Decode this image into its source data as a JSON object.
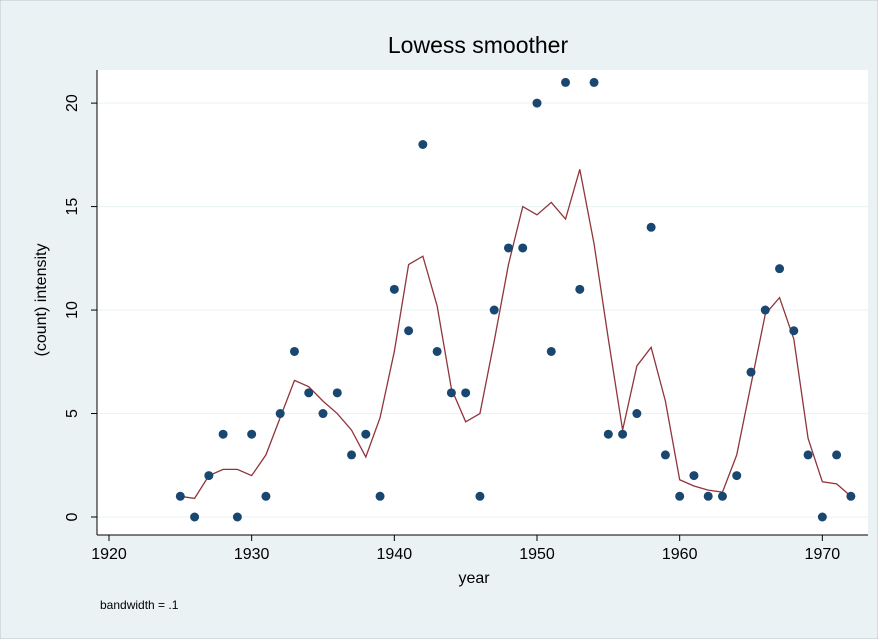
{
  "chart_data": {
    "type": "scatter",
    "title": "Lowess smoother",
    "x_label": "year",
    "y_label": "(count) intensity",
    "note": "bandwidth = .1",
    "x": [
      1925,
      1926,
      1927,
      1928,
      1929,
      1930,
      1931,
      1932,
      1933,
      1934,
      1935,
      1936,
      1937,
      1938,
      1939,
      1940,
      1941,
      1942,
      1943,
      1944,
      1945,
      1946,
      1947,
      1948,
      1949,
      1950,
      1951,
      1952,
      1953,
      1954,
      1955,
      1956,
      1957,
      1958,
      1959,
      1960,
      1961,
      1962,
      1963,
      1964,
      1965,
      1966,
      1967,
      1968,
      1969,
      1970,
      1971,
      1972
    ],
    "series": [
      {
        "color": "#1a476f",
        "style": "markers",
        "values": [
          1,
          0,
          2,
          4,
          0,
          4,
          1,
          5,
          8,
          6,
          5,
          6,
          3,
          4,
          1,
          11,
          9,
          18,
          8,
          6,
          6,
          1,
          10,
          13,
          13,
          20,
          8,
          21,
          11,
          21,
          4,
          4,
          5,
          14,
          3,
          1,
          2,
          1,
          1,
          2,
          7,
          10,
          12,
          9,
          3,
          0,
          3,
          1
        ]
      },
      {
        "color": "#90353b",
        "style": "line",
        "values": [
          1.0,
          0.9,
          2.0,
          2.3,
          2.3,
          2.0,
          3.0,
          4.8,
          6.6,
          6.3,
          5.6,
          5.0,
          4.2,
          2.9,
          4.8,
          8.0,
          12.2,
          12.6,
          10.2,
          6.2,
          4.6,
          5.0,
          8.5,
          12.2,
          15.0,
          14.6,
          15.2,
          14.4,
          16.8,
          13.2,
          8.6,
          4.2,
          7.3,
          8.2,
          5.6,
          1.8,
          1.5,
          1.3,
          1.2,
          3.0,
          6.4,
          9.8,
          10.6,
          8.6,
          3.8,
          1.7,
          1.6,
          1.0
        ]
      }
    ],
    "xlim": [
      1919.16,
      1973.2
    ],
    "ylim": [
      -0.87,
      21.6
    ],
    "xticks": [
      1920,
      1930,
      1940,
      1950,
      1960,
      1970
    ],
    "yticks": [
      0,
      5,
      10,
      15,
      20
    ],
    "grid": true
  }
}
